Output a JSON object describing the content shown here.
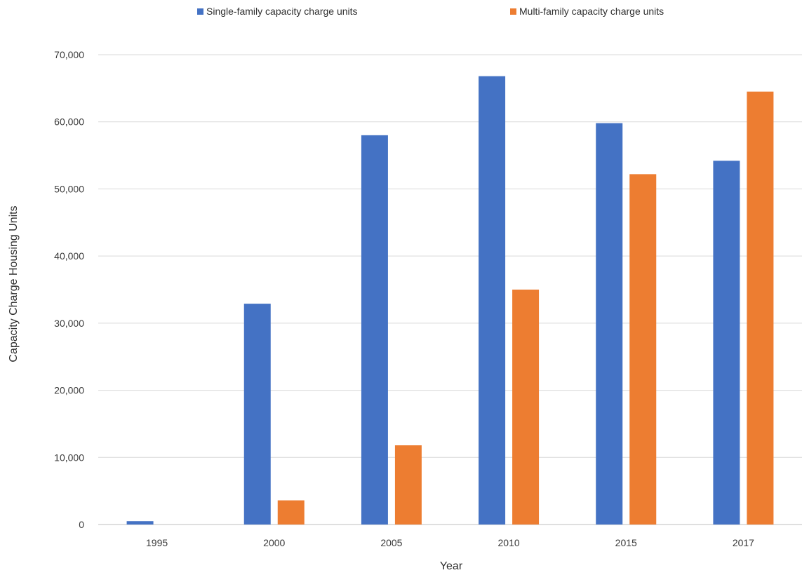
{
  "chart_data": {
    "type": "bar",
    "title": "",
    "xlabel": "Year",
    "ylabel": "Capacity Charge Housing Units",
    "categories": [
      "1995",
      "2000",
      "2005",
      "2010",
      "2015",
      "2017"
    ],
    "series": [
      {
        "name": "Single-family capacity charge units",
        "color": "#4472C4",
        "values": [
          500,
          32900,
          58000,
          66800,
          59800,
          54200
        ]
      },
      {
        "name": "Multi-family capacity charge units",
        "color": "#ED7D31",
        "values": [
          0,
          3600,
          11800,
          35000,
          52200,
          64500
        ]
      }
    ],
    "ylim": [
      0,
      70000
    ],
    "yticks": [
      0,
      10000,
      20000,
      30000,
      40000,
      50000,
      60000,
      70000
    ],
    "ytick_labels": [
      "0",
      "10,000",
      "20,000",
      "30,000",
      "40,000",
      "50,000",
      "60,000",
      "70,000"
    ],
    "grid": true,
    "legend": "top-center"
  }
}
